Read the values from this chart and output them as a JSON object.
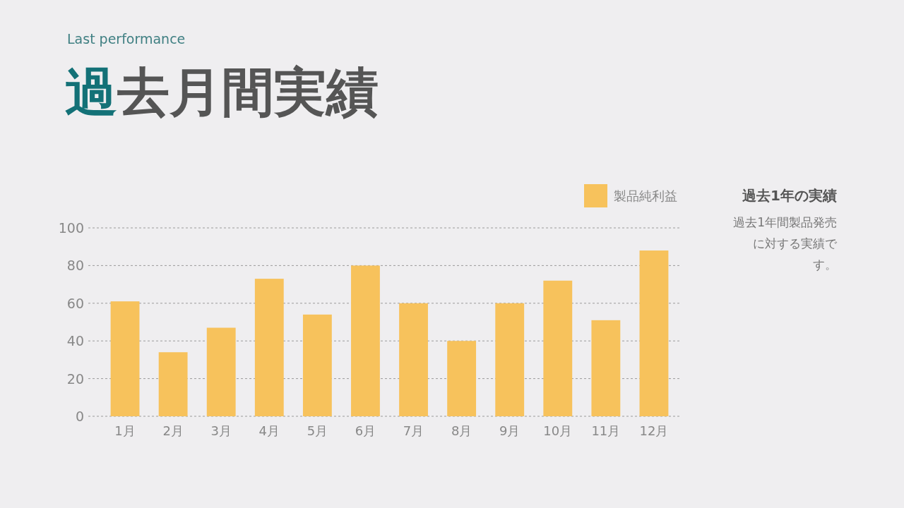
{
  "chart_data": {
    "type": "bar",
    "title": "過去月間実績",
    "subtitle": "Last performance",
    "categories": [
      "1月",
      "2月",
      "3月",
      "4月",
      "5月",
      "6月",
      "7月",
      "8月",
      "9月",
      "10月",
      "11月",
      "12月"
    ],
    "series": [
      {
        "name": "製品純利益",
        "color": "#f7c25c",
        "values": [
          61,
          34,
          47,
          73,
          54,
          80,
          60,
          40,
          60,
          72,
          51,
          88
        ]
      }
    ],
    "ylim": [
      0,
      100
    ],
    "yticks": [
      0,
      20,
      40,
      60,
      80,
      100
    ],
    "grid": "y",
    "legend": "top right",
    "annotations": [
      "過去1年の実績",
      "過去1年間製品発売に対する実績です。"
    ]
  }
}
